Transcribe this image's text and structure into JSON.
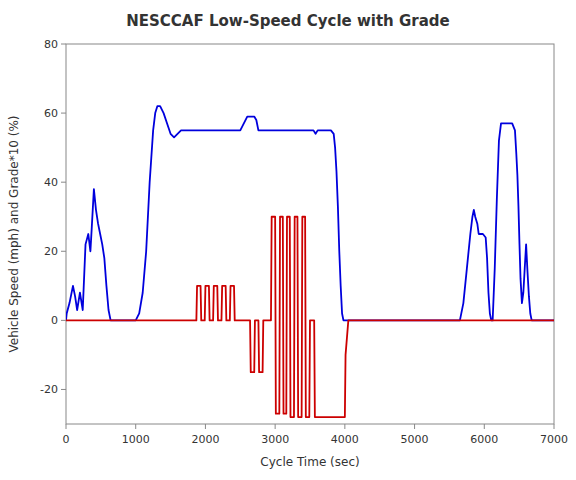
{
  "chart_data": {
    "type": "line",
    "title": "NESCCAF Low-Speed Cycle with Grade",
    "x_label": "Cycle Time (sec)",
    "y_label": "Vehicle Speed (mph) and Grade*10 (%)",
    "xlim": [
      0,
      7000
    ],
    "ylim": [
      -30,
      80
    ],
    "xticks": [
      0,
      1000,
      2000,
      3000,
      4000,
      5000,
      6000,
      7000
    ],
    "yticks": [
      -20,
      0,
      20,
      40,
      60,
      80
    ],
    "grid": false,
    "series": [
      {
        "color": "#0000DD",
        "x": [
          0,
          10,
          50,
          100,
          130,
          160,
          200,
          240,
          280,
          320,
          350,
          370,
          400,
          430,
          460,
          490,
          520,
          550,
          580,
          610,
          640,
          700,
          800,
          900,
          1000,
          1050,
          1100,
          1150,
          1200,
          1250,
          1280,
          1310,
          1350,
          1400,
          1450,
          1500,
          1550,
          1600,
          1650,
          1700,
          1800,
          1900,
          2000,
          2100,
          2200,
          2300,
          2400,
          2500,
          2600,
          2650,
          2700,
          2730,
          2760,
          2800,
          2850,
          2900,
          2950,
          3000,
          3050,
          3100,
          3150,
          3200,
          3250,
          3300,
          3350,
          3400,
          3450,
          3500,
          3550,
          3580,
          3610,
          3650,
          3700,
          3750,
          3800,
          3840,
          3860,
          3880,
          3900,
          3920,
          3940,
          3960,
          3980,
          4000,
          4100,
          4200,
          4300,
          4400,
          4500,
          4600,
          4700,
          4800,
          4900,
          5000,
          5100,
          5200,
          5300,
          5400,
          5500,
          5600,
          5650,
          5700,
          5750,
          5800,
          5830,
          5850,
          5870,
          5900,
          5920,
          5940,
          5980,
          6020,
          6040,
          6060,
          6080,
          6100,
          6120,
          6150,
          6180,
          6210,
          6240,
          6280,
          6320,
          6360,
          6400,
          6440,
          6460,
          6475,
          6490,
          6505,
          6520,
          6540,
          6560,
          6580,
          6600,
          6620,
          6640,
          6660,
          6680,
          6700,
          6800,
          6900,
          7000
        ],
        "values": [
          0,
          2,
          5,
          10,
          7,
          3,
          8,
          3,
          22,
          25,
          20,
          27,
          38,
          32,
          28,
          25,
          22,
          18,
          10,
          3,
          0,
          0,
          0,
          0,
          0,
          2,
          8,
          20,
          40,
          55,
          60,
          62,
          62,
          60,
          57,
          54,
          53,
          54,
          55,
          55,
          55,
          55,
          55,
          55,
          55,
          55,
          55,
          55,
          59,
          59,
          59,
          58,
          55,
          55,
          55,
          55,
          55,
          55,
          55,
          55,
          55,
          55,
          55,
          55,
          55,
          55,
          55,
          55,
          55,
          54,
          55,
          55,
          55,
          55,
          55,
          54,
          50,
          43,
          33,
          20,
          10,
          2,
          0,
          0,
          0,
          0,
          0,
          0,
          0,
          0,
          0,
          0,
          0,
          0,
          0,
          0,
          0,
          0,
          0,
          0,
          0,
          5,
          15,
          25,
          30,
          32,
          30,
          28,
          25,
          25,
          25,
          24,
          18,
          8,
          2,
          0,
          0,
          15,
          35,
          52,
          57,
          57,
          57,
          57,
          57,
          55,
          48,
          42,
          33,
          22,
          12,
          5,
          8,
          15,
          22,
          14,
          7,
          2,
          0,
          0,
          0,
          0,
          0
        ]
      },
      {
        "color": "#CC0000",
        "x": [
          0,
          200,
          400,
          600,
          800,
          1000,
          1200,
          1400,
          1600,
          1800,
          1870,
          1880,
          1930,
          1940,
          1990,
          2000,
          2050,
          2060,
          2110,
          2120,
          2170,
          2180,
          2230,
          2240,
          2290,
          2300,
          2350,
          2360,
          2410,
          2420,
          2500,
          2510,
          2600,
          2640,
          2650,
          2700,
          2710,
          2760,
          2770,
          2820,
          2830,
          2880,
          2900,
          2940,
          2950,
          3000,
          3010,
          3060,
          3070,
          3110,
          3120,
          3160,
          3170,
          3210,
          3220,
          3270,
          3280,
          3320,
          3330,
          3380,
          3390,
          3430,
          3440,
          3490,
          3500,
          3510,
          3560,
          3570,
          3600,
          3620,
          3700,
          3800,
          3900,
          3950,
          3980,
          4000,
          4010,
          4030,
          4050,
          4100,
          4200,
          4300,
          4400,
          4500,
          4600,
          4700,
          4800,
          4900,
          5000,
          5100,
          5200,
          5300,
          5400,
          5500,
          5600,
          5700,
          5800,
          5900,
          6000,
          6100,
          6200,
          6300,
          6400,
          6500,
          6600,
          6650,
          6660,
          6700,
          6800,
          6900,
          7000
        ],
        "values": [
          0,
          0,
          0,
          0,
          0,
          0,
          0,
          0,
          0,
          0,
          0,
          10,
          10,
          0,
          0,
          10,
          10,
          0,
          0,
          10,
          10,
          0,
          0,
          10,
          10,
          0,
          0,
          10,
          10,
          0,
          0,
          0,
          0,
          0,
          -15,
          -15,
          0,
          0,
          -15,
          -15,
          0,
          0,
          0,
          0,
          30,
          30,
          -27,
          -27,
          30,
          30,
          -27,
          -27,
          30,
          30,
          -28,
          -28,
          30,
          30,
          -28,
          -28,
          30,
          30,
          -28,
          -28,
          0,
          0,
          0,
          -28,
          -28,
          -28,
          -28,
          -28,
          -28,
          -28,
          -28,
          -28,
          -10,
          -5,
          0,
          0,
          0,
          0,
          0,
          0,
          0,
          0,
          0,
          0,
          0,
          0,
          0,
          0,
          0,
          0,
          0,
          0,
          0,
          0,
          0,
          0,
          0,
          0,
          0,
          0,
          0,
          0,
          0,
          0,
          0,
          0,
          0
        ]
      }
    ]
  }
}
